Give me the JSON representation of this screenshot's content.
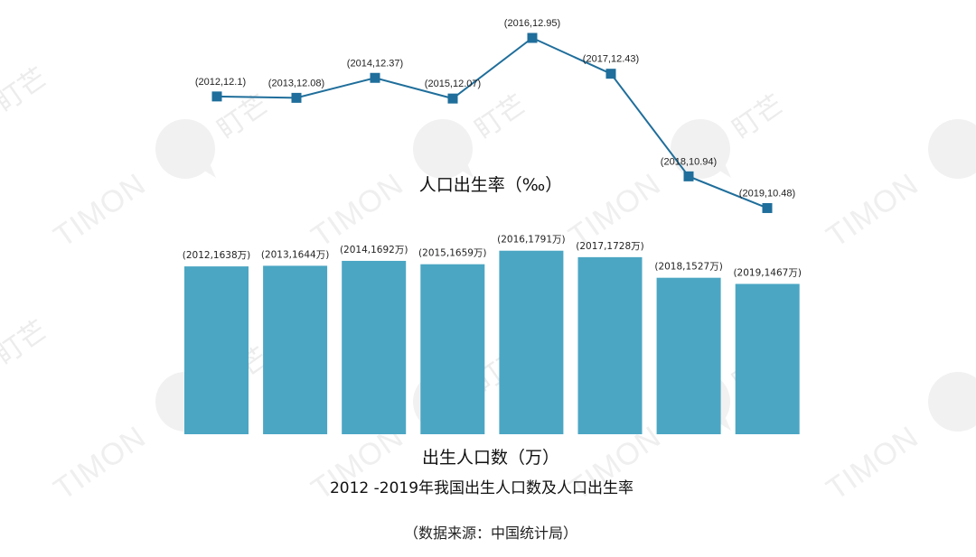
{
  "chart_data": [
    {
      "type": "line",
      "title": "人口出生率（‰）",
      "x": [
        2012,
        2013,
        2014,
        2015,
        2016,
        2017,
        2018,
        2019
      ],
      "values": [
        12.1,
        12.08,
        12.37,
        12.07,
        12.95,
        12.43,
        10.94,
        10.48
      ],
      "point_labels": [
        "(2012,12.1)",
        "(2013,12.08)",
        "(2014,12.37)",
        "(2015,12.07)",
        "(2016,12.95)",
        "(2017,12.43)",
        "(2018,10.94)",
        "(2019,10.48)"
      ],
      "color": "#1f6e9b"
    },
    {
      "type": "bar",
      "title": "出生人口数（万）",
      "categories": [
        2012,
        2013,
        2014,
        2015,
        2016,
        2017,
        2018,
        2019
      ],
      "values": [
        1638,
        1644,
        1692,
        1659,
        1791,
        1728,
        1527,
        1467
      ],
      "bar_labels": [
        "(2012,1638万)",
        "(2013,1644万)",
        "(2014,1692万)",
        "(2015,1659万)",
        "(2016,1791万)",
        "(2017,1728万)",
        "(2018,1527万)",
        "(2019,1467万)"
      ],
      "color": "#4ba6c3"
    }
  ],
  "caption": {
    "title": "2012 -2019年我国出生人口数及人口出生率",
    "source": "（数据来源：中国统计局）"
  },
  "watermark": {
    "text": "TIMON",
    "cn": "盯芒",
    "icon": "speech-bubble-logo"
  }
}
